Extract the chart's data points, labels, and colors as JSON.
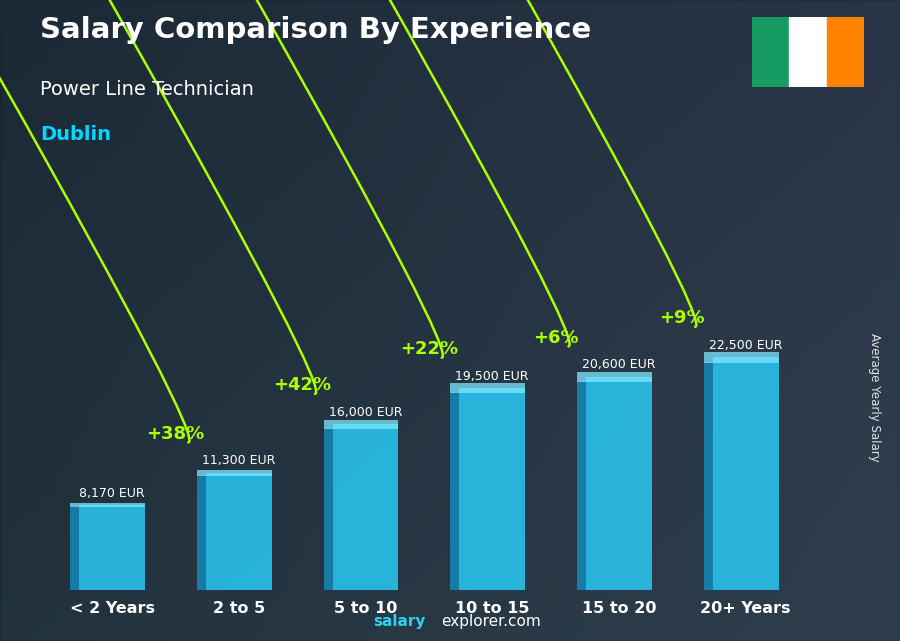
{
  "title": "Salary Comparison By Experience",
  "subtitle": "Power Line Technician",
  "city": "Dublin",
  "categories": [
    "< 2 Years",
    "2 to 5",
    "5 to 10",
    "10 to 15",
    "15 to 20",
    "20+ Years"
  ],
  "values": [
    8170,
    11300,
    16000,
    19500,
    20600,
    22500
  ],
  "salary_labels": [
    "8,170 EUR",
    "11,300 EUR",
    "16,000 EUR",
    "19,500 EUR",
    "20,600 EUR",
    "22,500 EUR"
  ],
  "pct_labels": [
    null,
    "+38%",
    "+42%",
    "+22%",
    "+6%",
    "+9%"
  ],
  "bar_face_color": "#29c5f0",
  "bar_side_color": "#1488b8",
  "bar_top_color": "#7de8ff",
  "bg_color_left": "#2a3f50",
  "bg_color_right": "#3a5060",
  "title_color": "#ffffff",
  "subtitle_color": "#ffffff",
  "city_color": "#00d8ff",
  "salary_label_color": "#ffffff",
  "pct_color": "#aaff00",
  "xlabel_color": "#ffffff",
  "watermark_bold": "salary",
  "watermark_normal": "explorer.com",
  "ylabel_text": "Average Yearly Salary",
  "figsize": [
    9.0,
    6.41
  ],
  "dpi": 100,
  "ireland_flag_green": "#169B62",
  "ireland_flag_white": "#ffffff",
  "ireland_flag_orange": "#FF8200"
}
